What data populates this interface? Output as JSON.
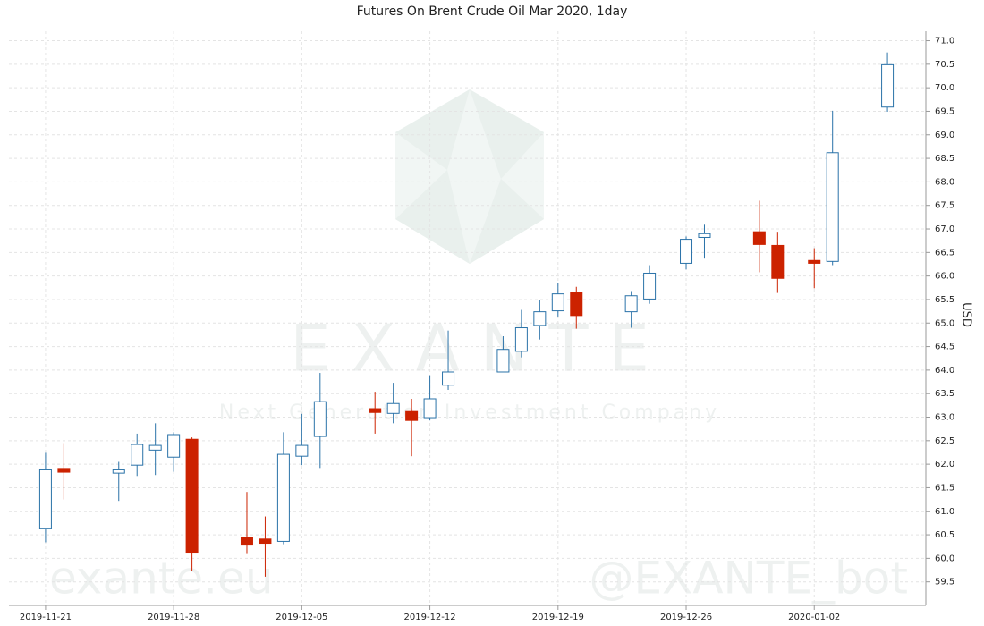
{
  "chart_data": {
    "type": "candlestick",
    "title": "Futures On Brent Crude Oil Mar 2020, 1day",
    "y_label": "USD",
    "x": [
      "2019-11-21",
      "2019-11-22",
      "2019-11-25",
      "2019-11-26",
      "2019-11-27",
      "2019-11-28",
      "2019-11-29",
      "2019-12-02",
      "2019-12-03",
      "2019-12-04",
      "2019-12-05",
      "2019-12-06",
      "2019-12-09",
      "2019-12-10",
      "2019-12-11",
      "2019-12-12",
      "2019-12-13",
      "2019-12-16",
      "2019-12-17",
      "2019-12-18",
      "2019-12-19",
      "2019-12-20",
      "2019-12-23",
      "2019-12-24",
      "2019-12-26",
      "2019-12-27",
      "2019-12-30",
      "2019-12-31",
      "2020-01-02",
      "2020-01-03",
      "2020-01-06"
    ],
    "open": [
      60.64,
      61.91,
      61.81,
      61.98,
      62.3,
      62.15,
      62.53,
      60.45,
      60.41,
      60.36,
      62.17,
      62.59,
      63.18,
      63.08,
      63.12,
      62.99,
      63.68,
      63.96,
      64.4,
      64.95,
      65.26,
      65.66,
      65.24,
      65.51,
      66.27,
      66.82,
      66.94,
      66.65,
      66.33,
      66.31,
      69.59
    ],
    "high": [
      62.26,
      62.45,
      62.05,
      62.65,
      62.87,
      62.68,
      62.57,
      61.41,
      60.89,
      62.68,
      63.07,
      63.94,
      63.54,
      63.73,
      63.39,
      63.89,
      64.84,
      64.72,
      65.28,
      65.49,
      65.85,
      65.77,
      65.68,
      66.23,
      66.84,
      67.09,
      67.6,
      66.94,
      66.59,
      69.51,
      70.75
    ],
    "low": [
      60.34,
      61.25,
      61.22,
      61.75,
      61.77,
      61.84,
      59.73,
      60.11,
      59.61,
      60.3,
      61.98,
      61.92,
      62.65,
      62.87,
      62.17,
      62.93,
      63.58,
      63.96,
      64.27,
      64.65,
      65.14,
      64.88,
      64.9,
      65.41,
      66.14,
      66.37,
      66.08,
      65.64,
      65.74,
      66.23,
      69.49
    ],
    "close": [
      61.88,
      61.83,
      61.88,
      62.42,
      62.4,
      62.63,
      60.13,
      60.3,
      60.32,
      62.21,
      62.4,
      63.33,
      63.1,
      63.29,
      62.93,
      63.39,
      63.96,
      64.44,
      64.9,
      65.24,
      65.62,
      65.16,
      65.58,
      66.06,
      66.78,
      66.9,
      66.67,
      65.95,
      66.27,
      68.62,
      70.49
    ],
    "up_color": "#2a72a8",
    "down_color": "#cc2200",
    "ylim": [
      59.0,
      71.2
    ],
    "yticks": [
      59.5,
      {
        "value": 60,
        "label": "60.0"
      },
      60.5,
      {
        "value": 61,
        "label": "61.0"
      },
      61.5,
      {
        "value": 62,
        "label": "62.0"
      },
      62.5,
      {
        "value": 63,
        "label": "63.0"
      },
      63.5,
      {
        "value": 64,
        "label": "64.0"
      },
      64.5,
      {
        "value": 65,
        "label": "65.0"
      },
      65.5,
      {
        "value": 66,
        "label": "66.0"
      },
      66.5,
      {
        "value": 67,
        "label": "67.0"
      },
      67.5,
      {
        "value": 68,
        "label": "68.0"
      },
      68.5,
      {
        "value": 69,
        "label": "69.0"
      },
      69.5,
      {
        "value": 70,
        "label": "70.0"
      },
      70.5,
      {
        "value": 71,
        "label": "71.0"
      }
    ],
    "xlim": [
      "2019-11-19",
      "2020-01-08"
    ],
    "xticks": [
      "2019-11-21",
      "2019-11-28",
      "2019-12-05",
      "2019-12-12",
      "2019-12-19",
      "2019-12-26",
      "2020-01-02"
    ],
    "grid": true,
    "watermark": {
      "brand": "E X A N T E",
      "tagline": "Next Generation Investment Company",
      "site": "exante.eu",
      "bot": "@EXANTE_bot"
    }
  }
}
